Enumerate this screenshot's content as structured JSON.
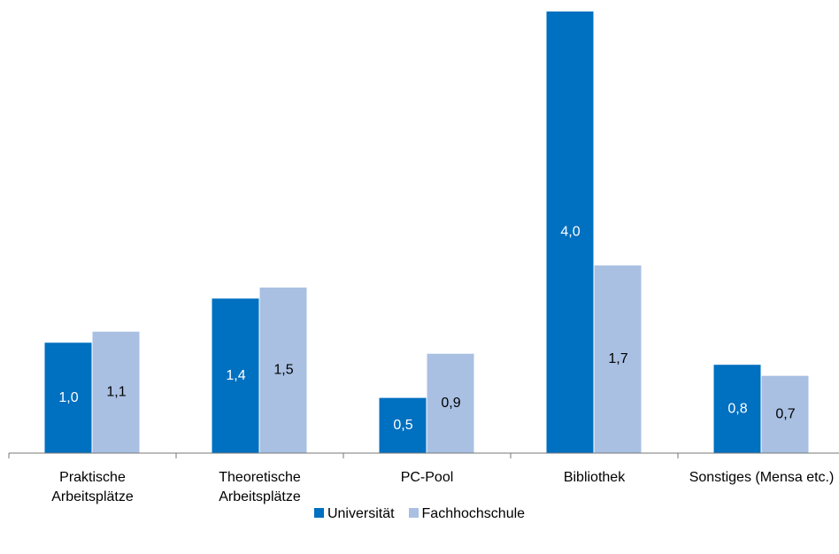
{
  "chart_data": {
    "type": "bar",
    "categories": [
      "Praktische Arbeitsplätze",
      "Theoretische Arbeitsplätze",
      "PC-Pool",
      "Bibliothek",
      "Sonstiges (Mensa etc.)"
    ],
    "series": [
      {
        "name": "Universität",
        "color": "#0070c0",
        "values": [
          1.0,
          1.4,
          0.5,
          4.0,
          0.8
        ],
        "value_labels": [
          "1,0",
          "1,4",
          "0,5",
          "4,0",
          "0,8"
        ]
      },
      {
        "name": "Fachhochschule",
        "color": "#a9c0e3",
        "values": [
          1.1,
          1.5,
          0.9,
          1.7,
          0.7
        ],
        "value_labels": [
          "1,1",
          "1,5",
          "0,9",
          "1,7",
          "0,7"
        ]
      }
    ],
    "ylim": [
      0,
      4
    ],
    "legend": "bottom"
  }
}
